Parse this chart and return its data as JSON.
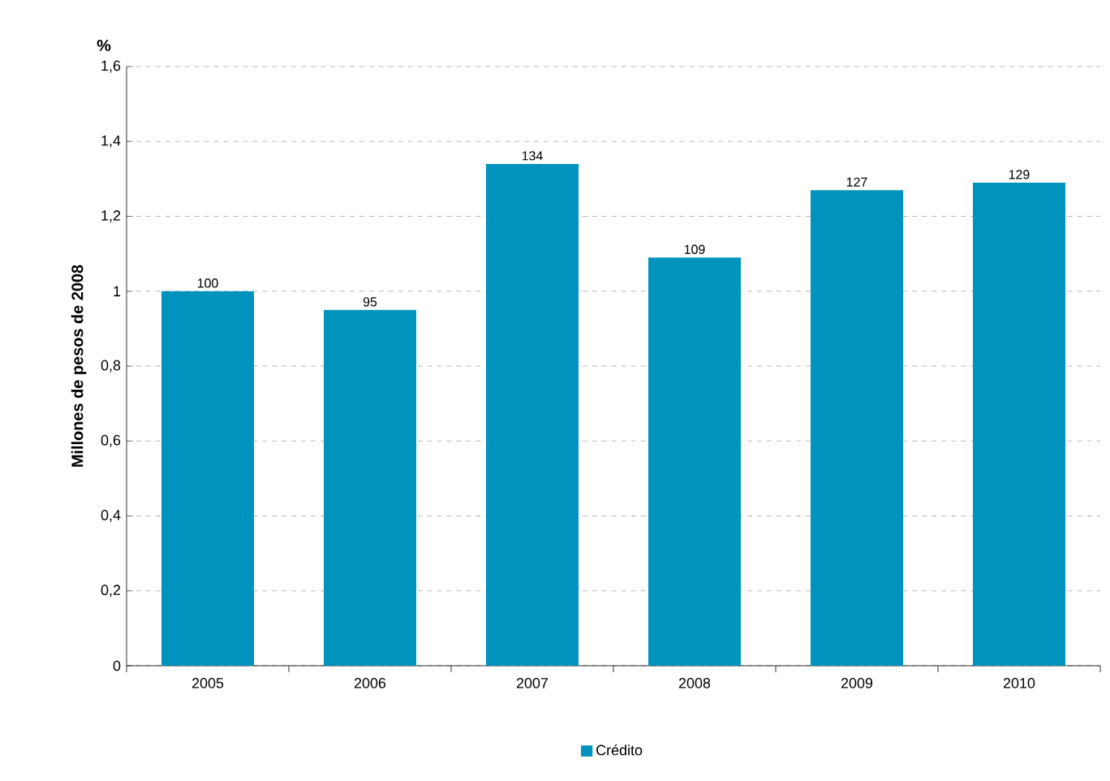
{
  "chart_data": {
    "type": "bar",
    "ylabel": "Millones de pesos de 2008",
    "annotations": [
      "%",
      {
        "text": "100",
        "x": "2005",
        "y": 1.0
      },
      {
        "text": "95",
        "x": "2006",
        "y": 0.95
      },
      {
        "text": "134",
        "x": "2007",
        "y": 1.34
      },
      {
        "text": "109",
        "x": "2008",
        "y": 1.09
      },
      {
        "text": "127",
        "x": "2009",
        "y": 1.27
      },
      {
        "text": "129",
        "x": "2010",
        "y": 1.29
      }
    ],
    "categories": [
      "2005",
      "2006",
      "2007",
      "2008",
      "2009",
      "2010"
    ],
    "series": [
      {
        "name": "Crédito",
        "color": "#0093bd",
        "values": [
          1.0,
          0.95,
          1.34,
          1.09,
          1.27,
          1.29
        ]
      }
    ],
    "ylim": [
      0,
      1.6
    ],
    "yticks": [
      {
        "value": 0,
        "label": "0"
      },
      {
        "value": 0.2,
        "label": "0,2"
      },
      {
        "value": 0.4,
        "label": "0,4"
      },
      {
        "value": 0.6,
        "label": "0,6"
      },
      {
        "value": 0.8,
        "label": "0,8"
      },
      {
        "value": 1,
        "label": "1"
      },
      {
        "value": 1.2,
        "label": "1,2"
      },
      {
        "value": 1.4,
        "label": "1,4"
      },
      {
        "value": 1.6,
        "label": "1,6"
      }
    ],
    "grid": "y",
    "legend": "bottom"
  }
}
